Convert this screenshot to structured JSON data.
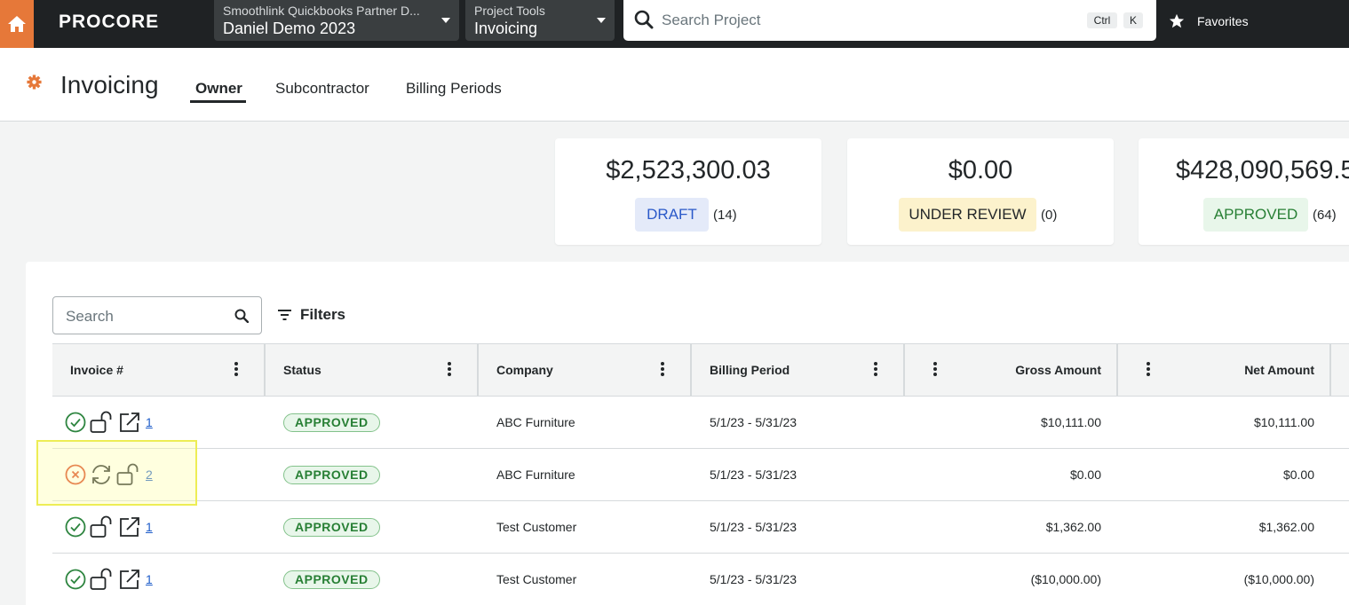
{
  "topbar": {
    "logo": "PROCORE",
    "project_picker": {
      "company": "Smoothlink Quickbooks Partner D...",
      "project": "Daniel Demo 2023"
    },
    "tool_picker": {
      "label": "Project Tools",
      "tool": "Invoicing"
    },
    "search": {
      "placeholder": "Search Project",
      "shortcut_ctrl": "Ctrl",
      "shortcut_key": "K"
    },
    "favorites": "Favorites"
  },
  "header": {
    "title": "Invoicing",
    "tabs": [
      {
        "label": "Owner",
        "active": true
      },
      {
        "label": "Subcontractor",
        "active": false
      },
      {
        "label": "Billing Periods",
        "active": false
      }
    ]
  },
  "summary": [
    {
      "amount": "$2,523,300.03",
      "status": "DRAFT",
      "count": "(14)"
    },
    {
      "amount": "$0.00",
      "status": "UNDER REVIEW",
      "count": "(0)"
    },
    {
      "amount": "$428,090,569.5",
      "status": "APPROVED",
      "count": "(64)"
    }
  ],
  "table": {
    "search_placeholder": "Search",
    "filters_label": "Filters",
    "columns": [
      "Invoice #",
      "Status",
      "Company",
      "Billing Period",
      "Gross Amount",
      "Net Amount"
    ],
    "rows": [
      {
        "sync_state": "synced",
        "invoice": "1",
        "status": "APPROVED",
        "company": "ABC Furniture",
        "period": "5/1/23 - 5/31/23",
        "gross": "$10,111.00",
        "net": "$10,111.00"
      },
      {
        "sync_state": "error",
        "invoice": "2",
        "status": "APPROVED",
        "company": "ABC Furniture",
        "period": "5/1/23 - 5/31/23",
        "gross": "$0.00",
        "net": "$0.00"
      },
      {
        "sync_state": "synced",
        "invoice": "1",
        "status": "APPROVED",
        "company": "Test Customer",
        "period": "5/1/23 - 5/31/23",
        "gross": "$1,362.00",
        "net": "$1,362.00"
      },
      {
        "sync_state": "synced",
        "invoice": "1",
        "status": "APPROVED",
        "company": "Test Customer",
        "period": "5/1/23 - 5/31/23",
        "gross": "($10,000.00)",
        "net": "($10,000.00)"
      }
    ]
  },
  "colors": {
    "brand_orange": "#e67839",
    "nav_bg": "#1f2224",
    "draft_bg": "#e4eaf9",
    "draft_text": "#2a59c9",
    "review_bg": "#fcf2cc",
    "approved_bg": "#e8f6ea",
    "approved_text": "#277f34",
    "link": "#1d5cc9",
    "ok_icon": "#2e8540",
    "error_icon": "#d9401c"
  },
  "icons": {
    "home": "home-icon",
    "search": "search-icon",
    "favorites": "star-icon",
    "settings": "gear-icon",
    "filters": "filter-icon",
    "column_menu": "kebab-icon",
    "synced": "check-circle-icon",
    "error": "error-circle-icon",
    "unlocked": "unlock-icon",
    "open_external": "external-link-icon",
    "resync": "refresh-icon"
  }
}
